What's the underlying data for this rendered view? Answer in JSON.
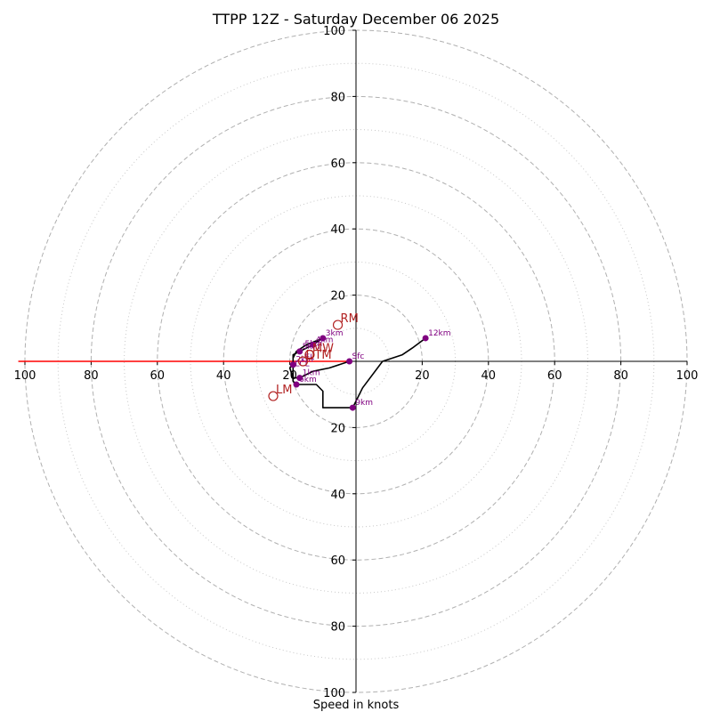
{
  "chart_data": {
    "type": "hodograph",
    "title": "TTPP 12Z - Saturday December 06 2025",
    "xlabel": "Speed in knots",
    "units": "knots",
    "range": [
      -100,
      100
    ],
    "rings": [
      20,
      40,
      60,
      80,
      100
    ],
    "minor_rings": [
      10,
      30,
      50,
      70,
      90
    ],
    "tick_labels": {
      "x_left": [
        "100",
        "80",
        "60",
        "40",
        "20"
      ],
      "x_right": [
        "20",
        "40",
        "60",
        "80",
        "100"
      ],
      "y_up": [
        "20",
        "40",
        "60",
        "80",
        "100"
      ],
      "y_down": [
        "20",
        "40",
        "60",
        "80",
        "100"
      ]
    },
    "colors": {
      "trace": "#000000",
      "points": "#800080",
      "motion": "#b22222",
      "red_line": "#ff0000",
      "ring": "#b0b0b0"
    },
    "trace": [
      {
        "u": -2,
        "v": 0
      },
      {
        "u": -8,
        "v": -2
      },
      {
        "u": -13,
        "v": -3
      },
      {
        "u": -15,
        "v": -4
      },
      {
        "u": -17,
        "v": -5
      },
      {
        "u": -19,
        "v": -5
      },
      {
        "u": -20,
        "v": -2
      },
      {
        "u": -19,
        "v": -1
      },
      {
        "u": -19,
        "v": 2
      },
      {
        "u": -17,
        "v": 3
      },
      {
        "u": -13,
        "v": 5
      },
      {
        "u": -10,
        "v": 7
      },
      {
        "u": -15,
        "v": 5
      },
      {
        "u": -18,
        "v": 3
      },
      {
        "u": -19,
        "v": 1
      },
      {
        "u": -19,
        "v": -4
      },
      {
        "u": -19,
        "v": -6
      },
      {
        "u": -18,
        "v": -7
      },
      {
        "u": -12,
        "v": -7
      },
      {
        "u": -10,
        "v": -9
      },
      {
        "u": -10,
        "v": -14
      },
      {
        "u": -1,
        "v": -14
      },
      {
        "u": 2,
        "v": -8
      },
      {
        "u": 8,
        "v": 0
      },
      {
        "u": 14,
        "v": 2
      },
      {
        "u": 17,
        "v": 4
      },
      {
        "u": 21,
        "v": 7
      }
    ],
    "height_points": [
      {
        "label": "Sfc",
        "u": -2,
        "v": 0
      },
      {
        "label": "1km",
        "u": -17,
        "v": -5
      },
      {
        "label": "2km",
        "u": -19,
        "v": -1
      },
      {
        "label": "3km",
        "u": -10,
        "v": 7
      },
      {
        "label": "4km",
        "u": -13,
        "v": 5
      },
      {
        "label": "5km",
        "u": -17,
        "v": 3
      },
      {
        "label": "6km",
        "u": -18,
        "v": -7
      },
      {
        "label": "9km",
        "u": -1,
        "v": -14
      },
      {
        "label": "12km",
        "u": 21,
        "v": 7
      }
    ],
    "storm_motions": [
      {
        "label": "RM",
        "u": -5.5,
        "v": 11
      },
      {
        "label": "LM",
        "u": -25,
        "v": -10.5
      },
      {
        "label": "MW",
        "u": -14,
        "v": 2
      },
      {
        "label": "DTM",
        "u": -16,
        "v": 0
      }
    ],
    "red_segment": {
      "from_u": -2,
      "from_v": 0,
      "to_u": -102,
      "to_v": 0
    },
    "extra_labels": [
      {
        "text": "5km",
        "u": -16,
        "v": 4
      },
      {
        "text": "LCL",
        "u": -19,
        "v": -2
      },
      {
        "text": "EL",
        "u": -16,
        "v": 0
      }
    ]
  }
}
